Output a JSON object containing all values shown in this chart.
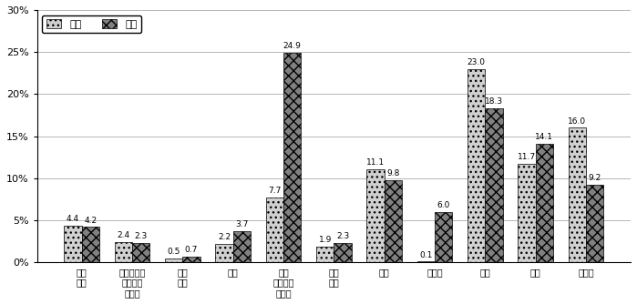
{
  "categories": [
    "幼児\n教室",
    "入園・入学\nのための\n学習塾",
    "そろ\nばん",
    "習字",
    "音楽\n（ピアノ\nなど）",
    "絵・\n工作",
    "体操",
    "バレェ",
    "水泳",
    "英語",
    "その他"
  ],
  "boys": [
    4.4,
    2.4,
    0.5,
    2.2,
    7.7,
    1.9,
    11.1,
    0.1,
    23.0,
    11.7,
    16.0
  ],
  "girls": [
    4.2,
    2.3,
    0.7,
    3.7,
    24.9,
    2.3,
    9.8,
    6.0,
    18.3,
    14.1,
    9.2
  ],
  "boy_color": "#d0d0d0",
  "girl_color": "#808080",
  "boy_hatch": "...",
  "girl_hatch": "xxx",
  "bar_width": 0.35,
  "ylim": [
    0,
    30
  ],
  "yticks": [
    0,
    5,
    10,
    15,
    20,
    25,
    30
  ],
  "ytick_labels": [
    "0%",
    "5%",
    "10%",
    "15%",
    "20%",
    "25%",
    "30%"
  ],
  "legend_boy": "男児",
  "legend_girl": "女児",
  "title": "",
  "xlabel": "",
  "ylabel": "",
  "bg_color": "#ffffff",
  "label_fontsize": 7,
  "tick_fontsize": 8,
  "bar_label_fontsize": 6.5
}
